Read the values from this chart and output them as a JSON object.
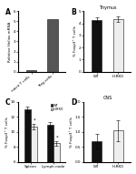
{
  "panel_A": {
    "label": "A",
    "categories": [
      "naive T cells",
      "Treg cells"
    ],
    "values": [
      0.15,
      5.2
    ],
    "bar_color": "#555555",
    "ylabel": "Relative Helios mRNA",
    "ylim": [
      0,
      6
    ],
    "yticks": [
      0,
      1,
      2,
      3,
      4,
      5,
      6
    ]
  },
  "panel_B": {
    "label": "B",
    "title": "Thymus",
    "categories": [
      "WT",
      "H₂RKO"
    ],
    "values": [
      4.3,
      4.35
    ],
    "errors": [
      0.18,
      0.2
    ],
    "bar_colors": [
      "#111111",
      "#eeeeee"
    ],
    "ylabel": "% Foxp3⁺ T cells",
    "ylim": [
      0,
      5
    ],
    "yticks": [
      0,
      1,
      2,
      3,
      4,
      5
    ]
  },
  "panel_C": {
    "label": "C",
    "categories": [
      "Spleen",
      "Lymph node"
    ],
    "wt_values": [
      13.0,
      10.9
    ],
    "rko_values": [
      10.7,
      8.5
    ],
    "wt_errors": [
      0.4,
      0.4
    ],
    "rko_errors": [
      0.4,
      0.3
    ],
    "wt_color": "#111111",
    "rko_color": "#eeeeee",
    "ylabel": "% Foxp3⁺ T cells",
    "ylim": [
      6,
      14
    ],
    "yticks": [
      6,
      8,
      10,
      12,
      14
    ],
    "legend_wt": "WT",
    "legend_rko": "H₂RKO"
  },
  "panel_D": {
    "label": "D",
    "title": "CNS",
    "categories": [
      "WT",
      "H₂RKO"
    ],
    "values": [
      0.7,
      1.05
    ],
    "errors": [
      0.25,
      0.35
    ],
    "bar_colors": [
      "#111111",
      "#eeeeee"
    ],
    "ylabel": "% Foxp3⁺ T cells",
    "ylim": [
      0,
      2.0
    ],
    "yticks": [
      0.0,
      0.5,
      1.0,
      1.5,
      2.0
    ]
  },
  "background_color": "#ffffff",
  "edge_color": "#111111"
}
